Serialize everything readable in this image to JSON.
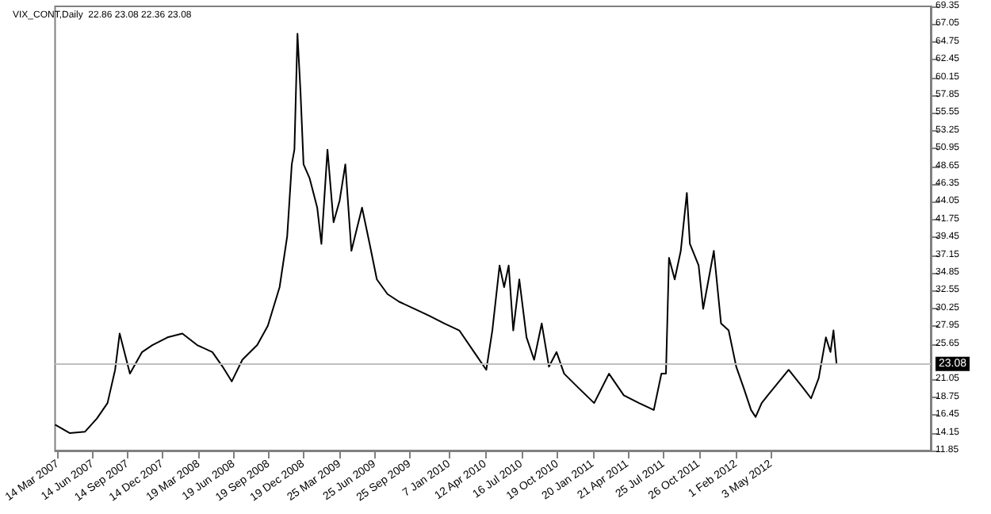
{
  "chart_data": {
    "type": "line",
    "title": "VIX_CONT,Daily  22.86 23.08 22.36 23.08",
    "x": [
      "2007-03-06",
      "2007-04-14",
      "2007-05-24",
      "2007-06-24",
      "2007-07-22",
      "2007-08-11",
      "2007-08-23",
      "2007-09-19",
      "2007-10-21",
      "2007-11-17",
      "2007-12-27",
      "2008-02-04",
      "2008-03-14",
      "2008-04-23",
      "2008-05-20",
      "2008-06-13",
      "2008-07-11",
      "2008-08-19",
      "2008-09-16",
      "2008-10-17",
      "2008-11-06",
      "2008-11-18",
      "2008-11-25",
      "2008-12-03",
      "2008-12-11",
      "2008-12-19",
      "2009-01-04",
      "2009-01-24",
      "2009-02-04",
      "2009-02-20",
      "2009-03-08",
      "2009-03-24",
      "2009-04-08",
      "2009-04-24",
      "2009-05-22",
      "2009-06-11",
      "2009-06-30",
      "2009-07-28",
      "2009-08-28",
      "2009-10-07",
      "2009-11-15",
      "2009-12-25",
      "2010-02-02",
      "2010-03-13",
      "2010-04-14",
      "2010-04-30",
      "2010-05-19",
      "2010-05-31",
      "2010-06-12",
      "2010-06-24",
      "2010-07-10",
      "2010-07-29",
      "2010-08-18",
      "2010-09-07",
      "2010-09-26",
      "2010-10-16",
      "2010-11-05",
      "2010-12-14",
      "2011-01-23",
      "2011-03-03",
      "2011-04-11",
      "2011-05-21",
      "2011-06-29",
      "2011-07-19",
      "2011-07-31",
      "2011-08-08",
      "2011-08-23",
      "2011-09-08",
      "2011-09-24",
      "2011-10-02",
      "2011-10-25",
      "2011-11-06",
      "2011-12-04",
      "2011-12-23",
      "2012-01-12",
      "2012-02-01",
      "2012-02-21",
      "2012-03-11",
      "2012-03-23",
      "2012-04-08",
      "2012-04-24",
      "2012-05-09",
      "2012-06-18",
      "2012-07-27",
      "2012-08-16",
      "2012-09-05",
      "2012-09-24",
      "2012-10-06",
      "2012-10-14",
      "2012-10-22"
    ],
    "values": [
      15.2,
      14.1,
      14.3,
      16.0,
      18.0,
      22.3,
      27.0,
      21.8,
      24.6,
      25.5,
      26.5,
      27.0,
      25.5,
      24.6,
      22.7,
      20.8,
      23.6,
      25.5,
      28.0,
      33.0,
      39.6,
      48.9,
      50.8,
      65.8,
      58.3,
      48.9,
      47.1,
      43.3,
      38.6,
      50.8,
      41.4,
      44.2,
      48.9,
      37.7,
      43.3,
      38.6,
      34.0,
      32.1,
      31.1,
      30.2,
      29.3,
      28.3,
      27.4,
      24.6,
      22.3,
      27.4,
      35.8,
      33.0,
      35.8,
      27.4,
      34.0,
      26.5,
      23.6,
      28.3,
      22.7,
      24.6,
      21.8,
      19.9,
      18.0,
      21.8,
      19.0,
      18.0,
      17.1,
      21.8,
      21.8,
      36.8,
      34.0,
      37.7,
      45.2,
      38.6,
      35.8,
      30.2,
      37.7,
      28.3,
      27.4,
      22.7,
      19.9,
      17.1,
      16.2,
      18.0,
      19.0,
      19.9,
      22.3,
      19.9,
      18.6,
      21.2,
      26.5,
      24.6,
      27.4,
      23.08
    ],
    "color": "#000000",
    "xlim": [
      "2007-03-06",
      "2013-06-27"
    ],
    "xticks": [
      {
        "value": "2007-03-14",
        "label": "14 Mar 2007"
      },
      {
        "value": "2007-06-14",
        "label": "14 Jun 2007"
      },
      {
        "value": "2007-09-14",
        "label": "14 Sep 2007"
      },
      {
        "value": "2007-12-14",
        "label": "14 Dec 2007"
      },
      {
        "value": "2008-03-19",
        "label": "19 Mar 2008"
      },
      {
        "value": "2008-06-19",
        "label": "19 Jun 2008"
      },
      {
        "value": "2008-09-19",
        "label": "19 Sep 2008"
      },
      {
        "value": "2008-12-19",
        "label": "19 Dec 2008"
      },
      {
        "value": "2009-03-25",
        "label": "25 Mar 2009"
      },
      {
        "value": "2009-06-25",
        "label": "25 Jun 2009"
      },
      {
        "value": "2009-09-25",
        "label": "25 Sep 2009"
      },
      {
        "value": "2010-01-07",
        "label": "7 Jan 2010"
      },
      {
        "value": "2010-04-12",
        "label": "12 Apr 2010"
      },
      {
        "value": "2010-07-16",
        "label": "16 Jul 2010"
      },
      {
        "value": "2010-10-19",
        "label": "19 Oct 2010"
      },
      {
        "value": "2011-01-20",
        "label": "20 Jan 2011"
      },
      {
        "value": "2011-04-21",
        "label": "21 Apr 2011"
      },
      {
        "value": "2011-07-25",
        "label": "25 Jul 2011"
      },
      {
        "value": "2011-10-26",
        "label": "26 Oct 2011"
      },
      {
        "value": "2012-02-01",
        "label": "1 Feb 2012"
      },
      {
        "value": "2012-05-03",
        "label": "3 May 2012"
      }
    ],
    "ylim": [
      11.85,
      69.35
    ],
    "yticks": [
      {
        "value": 11.85,
        "label": "11.85"
      },
      {
        "value": 14.15,
        "label": "14.15"
      },
      {
        "value": 16.45,
        "label": "16.45"
      },
      {
        "value": 18.75,
        "label": "18.75"
      },
      {
        "value": 21.05,
        "label": "21.05"
      },
      {
        "value": 25.65,
        "label": "25.65"
      },
      {
        "value": 27.95,
        "label": "27.95"
      },
      {
        "value": 30.25,
        "label": "30.25"
      },
      {
        "value": 32.55,
        "label": "32.55"
      },
      {
        "value": 34.85,
        "label": "34.85"
      },
      {
        "value": 37.15,
        "label": "37.15"
      },
      {
        "value": 39.45,
        "label": "39.45"
      },
      {
        "value": 41.75,
        "label": "41.75"
      },
      {
        "value": 44.05,
        "label": "44.05"
      },
      {
        "value": 46.35,
        "label": "46.35"
      },
      {
        "value": 48.65,
        "label": "48.65"
      },
      {
        "value": 50.95,
        "label": "50.95"
      },
      {
        "value": 53.25,
        "label": "53.25"
      },
      {
        "value": 55.55,
        "label": "55.55"
      },
      {
        "value": 57.85,
        "label": "57.85"
      },
      {
        "value": 60.15,
        "label": "60.15"
      },
      {
        "value": 62.45,
        "label": "62.45"
      },
      {
        "value": 64.75,
        "label": "64.75"
      },
      {
        "value": 67.05,
        "label": "67.05"
      },
      {
        "value": 69.35,
        "label": "69.35"
      }
    ],
    "ref_lines": [
      {
        "axis": "y",
        "value": 23.08,
        "label": "23.08",
        "color": "#c0c0c0"
      }
    ]
  }
}
